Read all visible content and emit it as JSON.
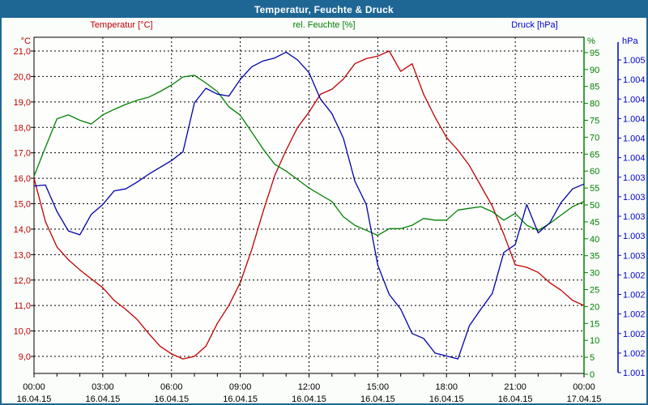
{
  "window": {
    "title": "Temperatur, Feuchte & Druck"
  },
  "colors": {
    "titlebar": "#1E6795",
    "page_bg": "#FAFDFA",
    "plot_bg": "#FEFEFD",
    "temp": "#C00000",
    "humidity": "#008000",
    "pressure_curve": "#0000AA",
    "pressure_label": "#0000CC",
    "grid": "#000000"
  },
  "chart_data": {
    "type": "line",
    "title": "Temperatur, Feuchte & Druck",
    "x_unit": "hours",
    "x_start": 0,
    "x_step": 0.5,
    "x_range": [
      0,
      24
    ],
    "grid": "dashed, horizontal per 1 degC, vertical per 3 h",
    "x_ticks": [
      {
        "time": "00:00",
        "date": "16.04.15"
      },
      {
        "time": "03:00",
        "date": "16.04.15"
      },
      {
        "time": "06:00",
        "date": "16.04.15"
      },
      {
        "time": "09:00",
        "date": "16.04.15"
      },
      {
        "time": "12:00",
        "date": "16.04.15"
      },
      {
        "time": "15:00",
        "date": "16.04.15"
      },
      {
        "time": "18:00",
        "date": "16.04.15"
      },
      {
        "time": "21:00",
        "date": "16.04.15"
      },
      {
        "time": "00:00",
        "date": "17.04.15"
      }
    ],
    "axes": {
      "temp": {
        "unit": "°C",
        "min": 9,
        "max": 21,
        "tick_step": 1,
        "tick_labels": [
          "21,0",
          "20,0",
          "19,0",
          "18,0",
          "17,0",
          "16,0",
          "15,0",
          "14,0",
          "13,0",
          "12,0",
          "11,0",
          "10,0",
          "9,0"
        ]
      },
      "humidity": {
        "unit": "%",
        "min": 0,
        "max": 95,
        "tick_step": 5,
        "tick_labels": [
          "95",
          "90",
          "85",
          "80",
          "75",
          "70",
          "65",
          "60",
          "55",
          "50",
          "45",
          "40",
          "35",
          "30",
          "25",
          "20",
          "15",
          "10",
          "5",
          "0"
        ]
      },
      "pressure": {
        "unit": "hPa",
        "approx_top": 1005.1,
        "approx_bottom": 1001.9,
        "tick_count": 17,
        "tick_labels": [
          "1.005",
          "1.004",
          "1.004",
          "1.004",
          "1.004",
          "1.004",
          "1.003",
          "1.003",
          "1.003",
          "1.003",
          "1.003",
          "1.002",
          "1.002",
          "1.002",
          "1.002",
          "1.002",
          "1.001"
        ]
      }
    },
    "series": [
      {
        "name": "Temperatur [°C]",
        "axis": "temp",
        "color": "#C00000",
        "values": [
          16.0,
          14.3,
          13.3,
          12.8,
          12.4,
          12.05,
          11.7,
          11.2,
          10.85,
          10.45,
          9.9,
          9.4,
          9.1,
          8.9,
          9.0,
          9.4,
          10.3,
          11.0,
          11.9,
          13.2,
          14.7,
          16.1,
          17.1,
          18.0,
          18.6,
          19.3,
          19.5,
          19.9,
          20.5,
          20.7,
          20.8,
          21.0,
          20.2,
          20.5,
          19.3,
          18.4,
          17.6,
          17.1,
          16.5,
          15.7,
          14.9,
          13.8,
          12.6,
          12.5,
          12.3,
          11.9,
          11.6,
          11.2,
          11.0
        ]
      },
      {
        "name": "rel. Feuchte [%]",
        "axis": "humidity",
        "color": "#008000",
        "values": [
          58.5,
          67.0,
          75.4,
          76.6,
          75.0,
          73.9,
          76.6,
          78.2,
          79.7,
          80.9,
          81.8,
          83.5,
          85.4,
          87.8,
          88.3,
          86.0,
          83.5,
          79.0,
          76.5,
          71.5,
          66.5,
          62.0,
          60.0,
          57.5,
          55.0,
          53.0,
          51.0,
          46.5,
          44.0,
          42.5,
          41.0,
          43.0,
          43.0,
          44.0,
          46.0,
          45.5,
          45.5,
          48.5,
          49.0,
          49.5,
          48.0,
          45.5,
          47.5,
          44.0,
          42.5,
          44.5,
          47.0,
          49.5,
          51.0
        ]
      },
      {
        "name": "Druck [hPa]",
        "axis": "pressure",
        "color": "#0000AA",
        "values": [
          1003.81,
          1003.82,
          1003.55,
          1003.35,
          1003.31,
          1003.52,
          1003.62,
          1003.76,
          1003.78,
          1003.85,
          1003.93,
          1004.0,
          1004.07,
          1004.16,
          1004.66,
          1004.81,
          1004.75,
          1004.73,
          1004.9,
          1005.03,
          1005.09,
          1005.12,
          1005.18,
          1005.1,
          1004.97,
          1004.7,
          1004.55,
          1004.3,
          1003.86,
          1003.62,
          1003.0,
          1002.7,
          1002.55,
          1002.3,
          1002.25,
          1002.1,
          1002.07,
          1002.04,
          1002.38,
          1002.55,
          1002.71,
          1003.13,
          1003.21,
          1003.62,
          1003.33,
          1003.43,
          1003.64,
          1003.78,
          1003.83
        ]
      }
    ]
  }
}
